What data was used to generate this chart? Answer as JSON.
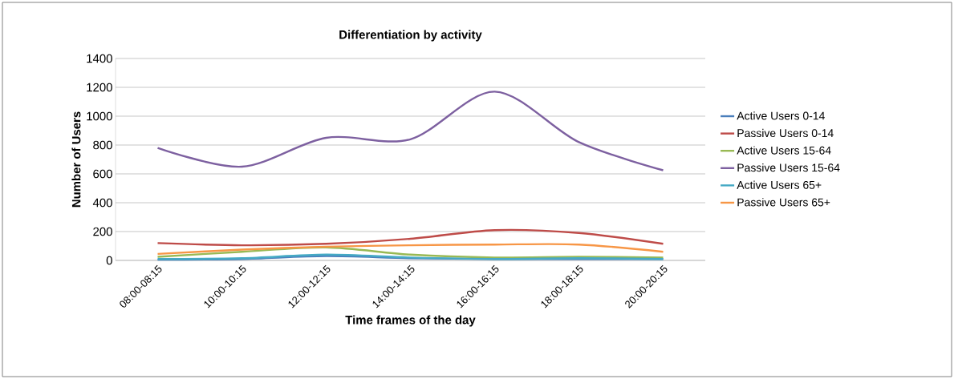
{
  "chart_data": {
    "type": "line",
    "title": "Differentiation by activity",
    "xlabel": "Time frames of the day",
    "ylabel": "Number of Users",
    "categories": [
      "08:00-08:15",
      "10:00-10:15",
      "12:00-12:15",
      "14:00-14:15",
      "16:00-16:15",
      "18:00-18:15",
      "20:00-20:15"
    ],
    "series": [
      {
        "name": "Active Users 0-14",
        "color": "#4a7ebb",
        "values": [
          5,
          10,
          30,
          15,
          10,
          10,
          10
        ]
      },
      {
        "name": "Passive Users 0-14",
        "color": "#be4b48",
        "values": [
          120,
          105,
          115,
          150,
          210,
          190,
          115
        ]
      },
      {
        "name": "Active Users 15-64",
        "color": "#98b954",
        "values": [
          25,
          60,
          90,
          40,
          20,
          25,
          20
        ]
      },
      {
        "name": "Passive Users 15-64",
        "color": "#7d60a0",
        "values": [
          780,
          650,
          850,
          840,
          1170,
          820,
          625
        ]
      },
      {
        "name": "Active Users 65+",
        "color": "#46aac5",
        "values": [
          10,
          15,
          40,
          20,
          10,
          15,
          10
        ]
      },
      {
        "name": "Passive Users 65+",
        "color": "#f79646",
        "values": [
          45,
          75,
          95,
          105,
          110,
          110,
          60
        ]
      }
    ],
    "ylim": [
      0,
      1400
    ],
    "yticks": [
      0,
      200,
      400,
      600,
      800,
      1000,
      1200,
      1400
    ],
    "grid": "y",
    "legend": "right",
    "marker": "none"
  }
}
